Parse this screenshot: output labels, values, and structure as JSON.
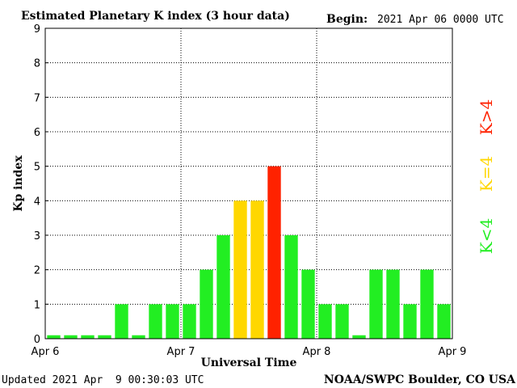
{
  "header": {
    "title": "Estimated Planetary K index (3 hour data)",
    "begin_label": "Begin:",
    "begin_value": "2021 Apr 06 0000 UTC"
  },
  "footer": {
    "updated": "Updated 2021 Apr  9 00:30:03 UTC",
    "source": "NOAA/SWPC Boulder, CO USA"
  },
  "legend": [
    {
      "label": "K>4",
      "color": "#ff2200"
    },
    {
      "label": "K=4",
      "color": "#ffd700"
    },
    {
      "label": "K<4",
      "color": "#22ee22"
    }
  ],
  "chart_data": {
    "type": "bar",
    "title": "Estimated Planetary K index (3 hour data)",
    "xlabel": "Universal Time",
    "ylabel": "Kp index",
    "ylim": [
      0,
      9
    ],
    "yticks": [
      0,
      1,
      2,
      3,
      4,
      5,
      6,
      7,
      8,
      9
    ],
    "xticks": [
      "Apr 6",
      "Apr 7",
      "Apr 8",
      "Apr 9"
    ],
    "interval_hours": 3,
    "values": [
      0,
      0,
      0,
      0,
      1,
      0,
      1,
      1,
      1,
      2,
      3,
      4,
      4,
      5,
      3,
      2,
      1,
      1,
      0,
      2,
      2,
      1,
      2,
      1
    ],
    "grid": true,
    "colors": {
      "below4": "#22ee22",
      "equal4": "#ffd700",
      "above4": "#ff2200"
    }
  }
}
